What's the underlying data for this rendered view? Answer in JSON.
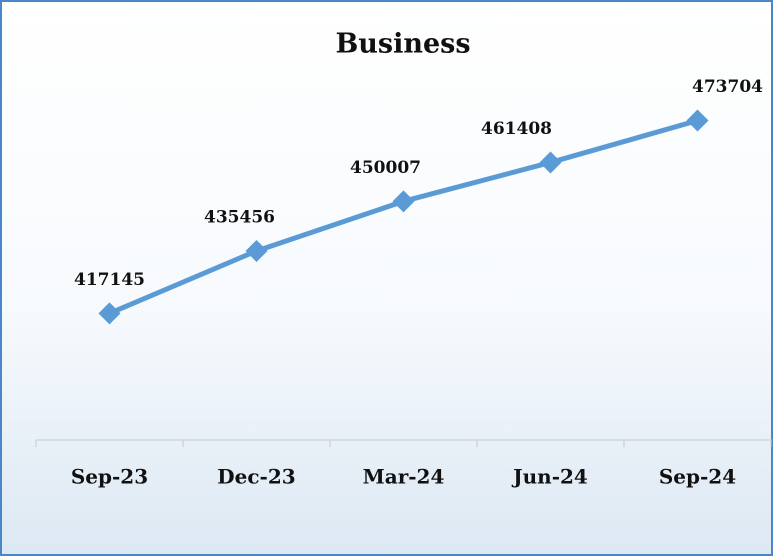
{
  "chart_data": {
    "type": "line",
    "title": "Business",
    "categories": [
      "Sep-23",
      "Dec-23",
      "Mar-24",
      "Jun-24",
      "Sep-24"
    ],
    "series": [
      {
        "name": "Business",
        "color": "#5b9bd5",
        "values": [
          417145,
          435456,
          450007,
          461408,
          473704
        ]
      }
    ],
    "ylim": [
      380000,
      490000
    ]
  }
}
